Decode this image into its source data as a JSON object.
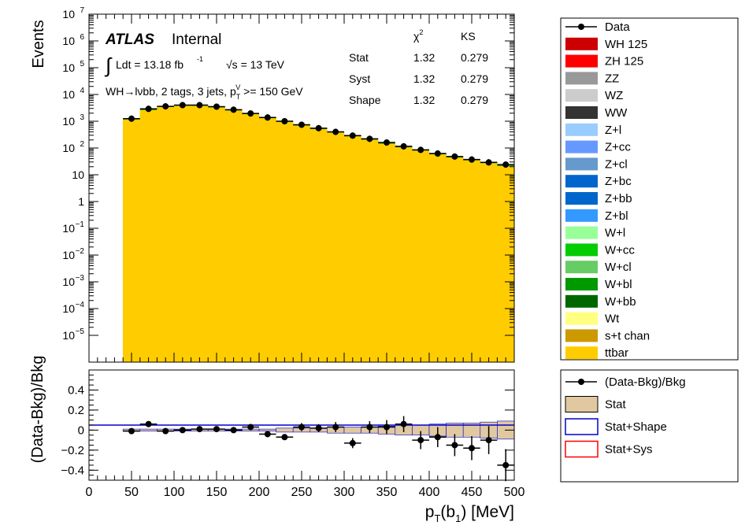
{
  "chart_data": [
    {
      "type": "bar",
      "panel": "main",
      "ylabel": "Events",
      "yscale": "log",
      "xlim": [
        0,
        500
      ],
      "ylim": [
        1e-06,
        10000000.0
      ],
      "bin_edges": [
        40,
        60,
        80,
        100,
        120,
        140,
        160,
        180,
        200,
        220,
        240,
        260,
        280,
        300,
        320,
        340,
        360,
        380,
        400,
        420,
        440,
        460,
        480,
        500
      ],
      "yticks": [
        {
          "v": 10000000.0,
          "base": "10",
          "exp": "7"
        },
        {
          "v": 1000000.0,
          "base": "10",
          "exp": "6"
        },
        {
          "v": 100000.0,
          "base": "10",
          "exp": "5"
        },
        {
          "v": 10000.0,
          "base": "10",
          "exp": "4"
        },
        {
          "v": 1000.0,
          "base": "10",
          "exp": "3"
        },
        {
          "v": 100.0,
          "base": "10",
          "exp": "2"
        },
        {
          "v": 10,
          "base": "10",
          "exp": ""
        },
        {
          "v": 1,
          "base": "1",
          "exp": ""
        },
        {
          "v": 0.1,
          "base": "10",
          "exp": "−1"
        },
        {
          "v": 0.01,
          "base": "10",
          "exp": "−2"
        },
        {
          "v": 0.001,
          "base": "10",
          "exp": "−3"
        },
        {
          "v": 0.0001,
          "base": "10",
          "exp": "−4"
        },
        {
          "v": 1e-05,
          "base": "10",
          "exp": "−5"
        }
      ],
      "series": [
        {
          "name": "ttbar",
          "color": "#ffcc00",
          "values": [
            1200,
            2700,
            3500,
            3900,
            3900,
            3400,
            2600,
            1900,
            1350,
            980,
            720,
            530,
            390,
            280,
            210,
            150,
            110,
            82,
            60,
            46,
            36,
            28,
            22
          ]
        },
        {
          "name": "Data",
          "color": "#000000",
          "values": [
            1250,
            2900,
            3600,
            4000,
            4000,
            3500,
            2700,
            1950,
            1380,
            1000,
            740,
            550,
            400,
            290,
            220,
            160,
            115,
            85,
            62,
            48,
            37,
            29,
            24
          ]
        }
      ],
      "text": {
        "atlas": "ATLAS",
        "internal": "Internal",
        "lumi_prefix": "Ldt = 13.18 fb",
        "lumi_exp": "-1",
        "sqrt": "√s = 13 TeV",
        "region_a": "WH→lνbb, 2 tags, 3 jets, p",
        "region_sub": "T",
        "region_sup": "V",
        "region_b": " >= 150 GeV"
      },
      "stats_table": {
        "headers": [
          "χ",
          "2",
          "KS"
        ],
        "rows": [
          {
            "label": "Stat",
            "chi2": "1.32",
            "ks": "0.279"
          },
          {
            "label": "Syst",
            "chi2": "1.32",
            "ks": "0.279"
          },
          {
            "label": "Shape",
            "chi2": "1.32",
            "ks": "0.279"
          }
        ]
      }
    },
    {
      "type": "scatter",
      "panel": "ratio",
      "ylabel": "(Data-Bkg)/Bkg",
      "xlabel_main": "p",
      "xlabel_sub": "T",
      "xlabel_mid": "(b",
      "xlabel_sub2": "1",
      "xlabel_end": ") [MeV]",
      "xlim": [
        0,
        500
      ],
      "ylim": [
        -0.5,
        0.6
      ],
      "xticks": [
        "0",
        "50",
        "100",
        "150",
        "200",
        "250",
        "300",
        "350",
        "400",
        "450",
        "500"
      ],
      "yticks": [
        "0.4",
        "0.2",
        "0",
        "−0.2",
        "−0.4"
      ],
      "x": [
        50,
        70,
        90,
        110,
        130,
        150,
        170,
        190,
        210,
        230,
        250,
        270,
        290,
        310,
        330,
        350,
        370,
        390,
        410,
        430,
        450,
        470,
        490
      ],
      "y": [
        -0.01,
        0.06,
        -0.01,
        0.0,
        0.01,
        0.01,
        0.0,
        0.03,
        -0.04,
        -0.07,
        0.03,
        0.02,
        0.03,
        -0.13,
        0.03,
        0.03,
        0.06,
        -0.1,
        -0.07,
        -0.15,
        -0.18,
        -0.1,
        -0.35
      ],
      "yerr": [
        0.02,
        0.02,
        0.02,
        0.02,
        0.02,
        0.02,
        0.02,
        0.03,
        0.03,
        0.03,
        0.04,
        0.04,
        0.05,
        0.05,
        0.06,
        0.07,
        0.08,
        0.09,
        0.1,
        0.11,
        0.12,
        0.14,
        0.16
      ],
      "stat_band": [
        0.01,
        0.01,
        0.01,
        0.01,
        0.01,
        0.01,
        0.01,
        0.01,
        0.01,
        0.02,
        0.02,
        0.02,
        0.03,
        0.03,
        0.03,
        0.04,
        0.05,
        0.05,
        0.06,
        0.07,
        0.07,
        0.08,
        0.09
      ]
    }
  ],
  "legend_main": [
    {
      "label": "Data",
      "color": "#000000",
      "kind": "marker"
    },
    {
      "label": "WH 125",
      "color": "#cc0000",
      "kind": "box"
    },
    {
      "label": "ZH 125",
      "color": "#ff0000",
      "kind": "box"
    },
    {
      "label": "ZZ",
      "color": "#999999",
      "kind": "box"
    },
    {
      "label": "WZ",
      "color": "#cccccc",
      "kind": "box"
    },
    {
      "label": "WW",
      "color": "#333333",
      "kind": "box"
    },
    {
      "label": "Z+l",
      "color": "#99ccff",
      "kind": "box"
    },
    {
      "label": "Z+cc",
      "color": "#6699ff",
      "kind": "box"
    },
    {
      "label": "Z+cl",
      "color": "#6699cc",
      "kind": "box"
    },
    {
      "label": "Z+bc",
      "color": "#0066cc",
      "kind": "box"
    },
    {
      "label": "Z+bb",
      "color": "#0066cc",
      "kind": "box"
    },
    {
      "label": "Z+bl",
      "color": "#3399ff",
      "kind": "box"
    },
    {
      "label": "W+l",
      "color": "#99ff99",
      "kind": "box"
    },
    {
      "label": "W+cc",
      "color": "#00cc00",
      "kind": "box"
    },
    {
      "label": "W+cl",
      "color": "#66cc66",
      "kind": "box"
    },
    {
      "label": "W+bl",
      "color": "#009900",
      "kind": "box"
    },
    {
      "label": "W+bb",
      "color": "#006600",
      "kind": "box"
    },
    {
      "label": "Wt",
      "color": "#ffff80",
      "kind": "box"
    },
    {
      "label": "s+t chan",
      "color": "#cc9900",
      "kind": "box"
    },
    {
      "label": "ttbar",
      "color": "#ffcc00",
      "kind": "box"
    }
  ],
  "legend_ratio": [
    {
      "label": "(Data-Bkg)/Bkg",
      "kind": "marker",
      "color": "#000000"
    },
    {
      "label": "Stat",
      "kind": "hatch",
      "color": "#e0c8a0"
    },
    {
      "label": "Stat+Shape",
      "kind": "outline",
      "color": "#0000cc"
    },
    {
      "label": "Stat+Sys",
      "kind": "outline",
      "color": "#ff0000"
    }
  ]
}
